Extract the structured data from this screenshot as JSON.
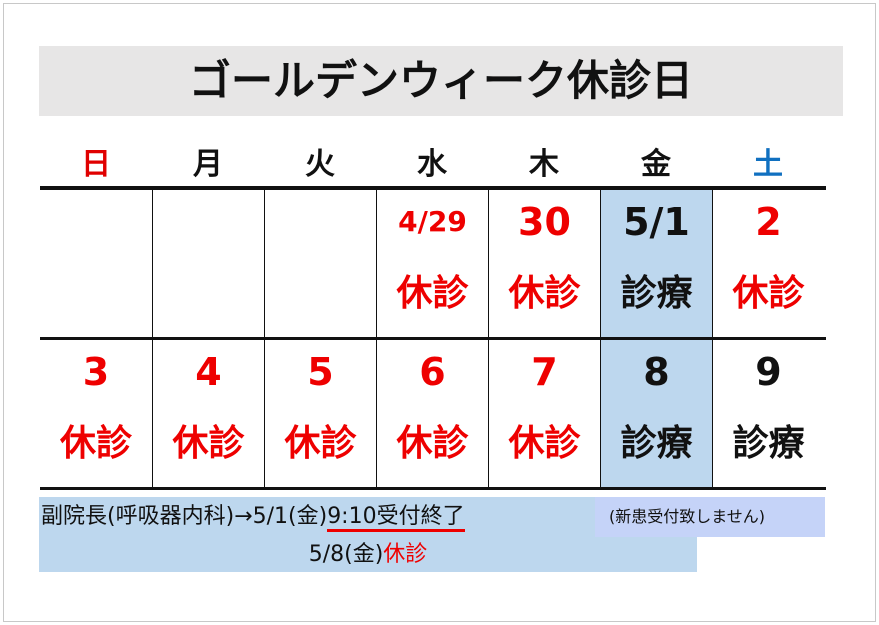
{
  "title": "ゴールデンウィーク休診日",
  "weekdays": [
    {
      "label": "日",
      "color": "#e00000"
    },
    {
      "label": "月"
    },
    {
      "label": "火"
    },
    {
      "label": "水"
    },
    {
      "label": "木"
    },
    {
      "label": "金"
    },
    {
      "label": "土",
      "color": "#1070c0"
    }
  ],
  "weeks": [
    [
      {},
      {},
      {},
      {
        "date": "4/29",
        "status": "休診",
        "closed": true
      },
      {
        "date": "30",
        "status": "休診",
        "closed": true
      },
      {
        "date": "5/1",
        "status": "診療",
        "highlight": true
      },
      {
        "date": "2",
        "status": "休診",
        "closed": true
      }
    ],
    [
      {
        "date": "3",
        "status": "休診",
        "closed": true
      },
      {
        "date": "4",
        "status": "休診",
        "closed": true
      },
      {
        "date": "5",
        "status": "休診",
        "closed": true
      },
      {
        "date": "6",
        "status": "休診",
        "closed": true
      },
      {
        "date": "7",
        "status": "休診",
        "closed": true
      },
      {
        "date": "8",
        "status": "診療",
        "highlight": true
      },
      {
        "date": "9",
        "status": "診療"
      }
    ]
  ],
  "notice": {
    "line1_prefix": "副院長(呼吸器内科)→5/1(金)",
    "line1_emph": "9:10受付終了",
    "line1_note": "(新患受付致しません)",
    "line2_prefix": "5/8(金)",
    "line2_emph": "休診"
  },
  "colors": {
    "closed": "#e00000",
    "highlight_bg": "#bdd7ee",
    "title_bg": "#e7e6e6"
  }
}
